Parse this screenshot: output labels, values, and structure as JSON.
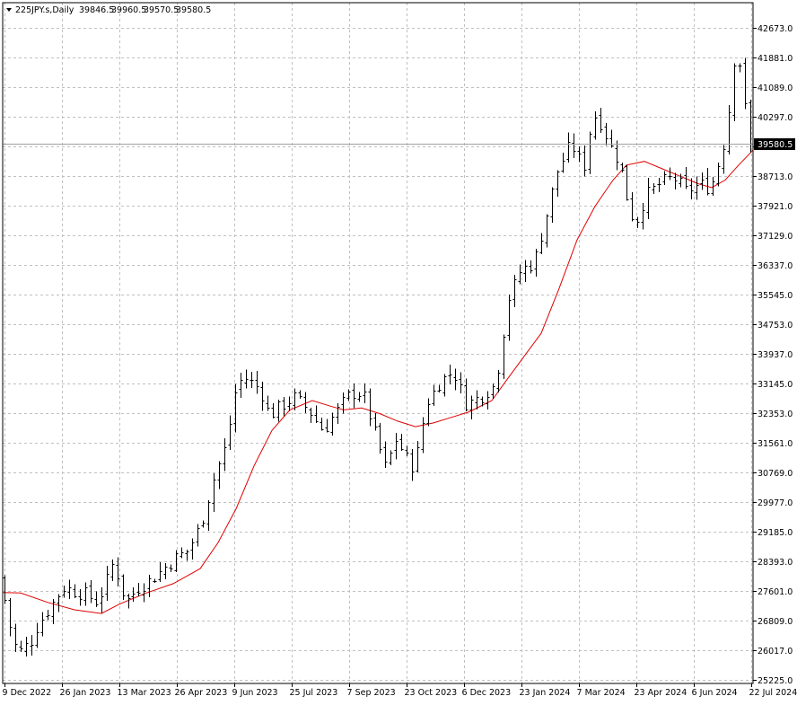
{
  "header": {
    "symbol": "225JPY.s,Daily",
    "open": "39846.5",
    "high": "39960.5",
    "low": "39570.5",
    "close": "39580.5"
  },
  "chart_data": {
    "type": "ohlc",
    "symbol": "225JPY.s",
    "timeframe": "Daily",
    "last_price": 39580.5,
    "last_price_label": "39580.5",
    "y_ticks": [
      "25225.0",
      "26017.0",
      "26809.0",
      "27601.0",
      "28393.0",
      "29185.0",
      "29977.0",
      "30769.0",
      "31561.0",
      "32353.0",
      "33145.0",
      "33937.0",
      "34753.0",
      "35545.0",
      "36337.0",
      "37129.0",
      "37921.0",
      "38713.0",
      "39505.0",
      "40297.0",
      "41089.0",
      "41881.0",
      "42673.0"
    ],
    "x_ticks": [
      "9 Dec 2022",
      "26 Jan 2023",
      "13 Mar 2023",
      "26 Apr 2023",
      "9 Jun 2023",
      "25 Jul 2023",
      "7 Sep 2023",
      "23 Oct 2023",
      "6 Dec 2023",
      "23 Jan 2024",
      "7 Mar 2024",
      "23 Apr 2024",
      "6 Jun 2024",
      "22 Jul 2024"
    ],
    "ylim": [
      25225.0,
      42970.0
    ],
    "grid": true,
    "indicator": {
      "type": "moving-average",
      "color": "#e00000"
    },
    "series": [
      {
        "values": [
          {
            "x": 0,
            "y": 27950
          },
          {
            "x": 14,
            "y": 26300
          },
          {
            "x": 21,
            "y": 25950
          },
          {
            "x": 35,
            "y": 26300
          },
          {
            "x": 42,
            "y": 26700
          },
          {
            "x": 56,
            "y": 27200
          },
          {
            "x": 70,
            "y": 27700
          },
          {
            "x": 84,
            "y": 27600
          },
          {
            "x": 98,
            "y": 27500
          },
          {
            "x": 108,
            "y": 27300
          },
          {
            "x": 117,
            "y": 27800
          },
          {
            "x": 126,
            "y": 28400
          },
          {
            "x": 140,
            "y": 27300
          },
          {
            "x": 154,
            "y": 27700
          },
          {
            "x": 168,
            "y": 27900
          },
          {
            "x": 182,
            "y": 28200
          },
          {
            "x": 196,
            "y": 28500
          },
          {
            "x": 210,
            "y": 28700
          },
          {
            "x": 224,
            "y": 29400
          },
          {
            "x": 238,
            "y": 30600
          },
          {
            "x": 252,
            "y": 31500
          },
          {
            "x": 264,
            "y": 33200
          },
          {
            "x": 275,
            "y": 33300
          },
          {
            "x": 290,
            "y": 33000
          },
          {
            "x": 300,
            "y": 32300
          },
          {
            "x": 315,
            "y": 32600
          },
          {
            "x": 329,
            "y": 32800
          },
          {
            "x": 345,
            "y": 32400
          },
          {
            "x": 360,
            "y": 31900
          },
          {
            "x": 374,
            "y": 32400
          },
          {
            "x": 390,
            "y": 32900
          },
          {
            "x": 404,
            "y": 32900
          },
          {
            "x": 418,
            "y": 31800
          },
          {
            "x": 430,
            "y": 30900
          },
          {
            "x": 442,
            "y": 31700
          },
          {
            "x": 452,
            "y": 31200
          },
          {
            "x": 462,
            "y": 30900
          },
          {
            "x": 475,
            "y": 32600
          },
          {
            "x": 490,
            "y": 33200
          },
          {
            "x": 505,
            "y": 33500
          },
          {
            "x": 520,
            "y": 32600
          },
          {
            "x": 535,
            "y": 32800
          },
          {
            "x": 550,
            "y": 33100
          },
          {
            "x": 556,
            "y": 33700
          },
          {
            "x": 566,
            "y": 35400
          },
          {
            "x": 580,
            "y": 36200
          },
          {
            "x": 595,
            "y": 36400
          },
          {
            "x": 608,
            "y": 37600
          },
          {
            "x": 620,
            "y": 38800
          },
          {
            "x": 636,
            "y": 39600
          },
          {
            "x": 650,
            "y": 38900
          },
          {
            "x": 660,
            "y": 40400
          },
          {
            "x": 670,
            "y": 40100
          },
          {
            "x": 680,
            "y": 39500
          },
          {
            "x": 690,
            "y": 39100
          },
          {
            "x": 700,
            "y": 38000
          },
          {
            "x": 708,
            "y": 37400
          },
          {
            "x": 720,
            "y": 38200
          },
          {
            "x": 735,
            "y": 38500
          },
          {
            "x": 750,
            "y": 38700
          },
          {
            "x": 765,
            "y": 38300
          },
          {
            "x": 780,
            "y": 38500
          },
          {
            "x": 792,
            "y": 38400
          },
          {
            "x": 805,
            "y": 39400
          },
          {
            "x": 815,
            "y": 40900
          },
          {
            "x": 820,
            "y": 42400
          },
          {
            "x": 826,
            "y": 41400
          },
          {
            "x": 832,
            "y": 40100
          },
          {
            "x": 836,
            "y": 39580
          }
        ]
      },
      {
        "values": [
          {
            "x": 0,
            "y": 27560
          },
          {
            "x": 20,
            "y": 27550
          },
          {
            "x": 50,
            "y": 27300
          },
          {
            "x": 80,
            "y": 27100
          },
          {
            "x": 110,
            "y": 27000
          },
          {
            "x": 130,
            "y": 27250
          },
          {
            "x": 160,
            "y": 27550
          },
          {
            "x": 190,
            "y": 27800
          },
          {
            "x": 220,
            "y": 28200
          },
          {
            "x": 240,
            "y": 28900
          },
          {
            "x": 260,
            "y": 29800
          },
          {
            "x": 280,
            "y": 30950
          },
          {
            "x": 300,
            "y": 31900
          },
          {
            "x": 320,
            "y": 32450
          },
          {
            "x": 345,
            "y": 32700
          },
          {
            "x": 365,
            "y": 32550
          },
          {
            "x": 380,
            "y": 32450
          },
          {
            "x": 400,
            "y": 32500
          },
          {
            "x": 420,
            "y": 32350
          },
          {
            "x": 440,
            "y": 32150
          },
          {
            "x": 460,
            "y": 32000
          },
          {
            "x": 480,
            "y": 32100
          },
          {
            "x": 500,
            "y": 32250
          },
          {
            "x": 520,
            "y": 32400
          },
          {
            "x": 545,
            "y": 32700
          },
          {
            "x": 560,
            "y": 33200
          },
          {
            "x": 580,
            "y": 33850
          },
          {
            "x": 600,
            "y": 34500
          },
          {
            "x": 620,
            "y": 35700
          },
          {
            "x": 640,
            "y": 37000
          },
          {
            "x": 660,
            "y": 37900
          },
          {
            "x": 680,
            "y": 38600
          },
          {
            "x": 695,
            "y": 39000
          },
          {
            "x": 715,
            "y": 39100
          },
          {
            "x": 735,
            "y": 38900
          },
          {
            "x": 755,
            "y": 38700
          },
          {
            "x": 775,
            "y": 38500
          },
          {
            "x": 790,
            "y": 38400
          },
          {
            "x": 805,
            "y": 38600
          },
          {
            "x": 820,
            "y": 39000
          },
          {
            "x": 836,
            "y": 39400
          }
        ]
      }
    ]
  }
}
